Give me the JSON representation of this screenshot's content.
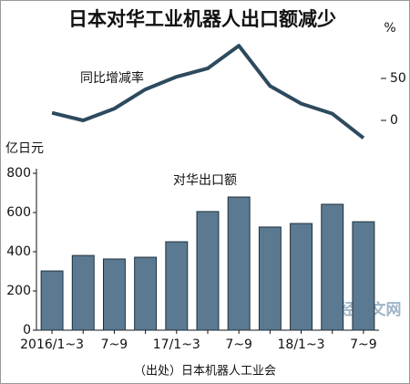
{
  "title": "日本对华工业机器人出口额减少",
  "source": "（出处）日本机器人工业会",
  "watermark": "日经中文网",
  "chart_data": [
    {
      "type": "line",
      "label": "同比增减率",
      "y_label": "%",
      "color": "#2d4a5e",
      "values": [
        9,
        0,
        14,
        37,
        52,
        62,
        89,
        41,
        20,
        8,
        -21
      ],
      "ylim": [
        -30,
        100
      ],
      "yticks": [
        0,
        50
      ]
    },
    {
      "type": "bar",
      "label": "对华出口额",
      "y_label": "亿日元",
      "color": "#5b7a91",
      "categories": [
        "2016/1~3",
        null,
        "7~9",
        null,
        "17/1~3",
        null,
        "7~9",
        null,
        "18/1~3",
        null,
        "7~9"
      ],
      "values": [
        302,
        381,
        363,
        372,
        451,
        605,
        679,
        526,
        544,
        642,
        553
      ],
      "ylim": [
        0,
        800
      ],
      "yticks": [
        0,
        200,
        400,
        600,
        800
      ]
    }
  ]
}
